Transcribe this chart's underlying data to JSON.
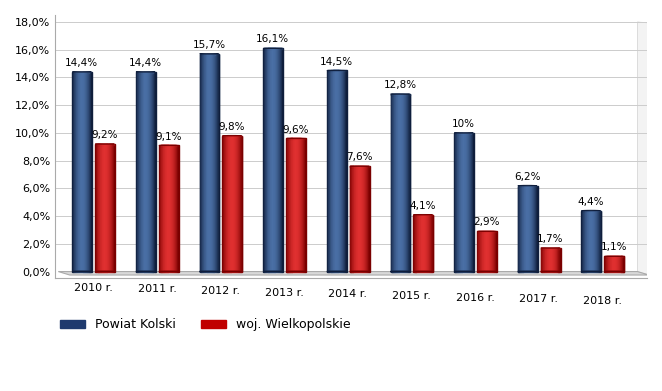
{
  "years": [
    "2010 r.",
    "2011 r.",
    "2012 r.",
    "2013 r.",
    "2014 r.",
    "2015 r.",
    "2016 r.",
    "2017 r.",
    "2018 r."
  ],
  "powiat_kolski": [
    14.4,
    14.4,
    15.7,
    16.1,
    14.5,
    12.8,
    10.0,
    6.2,
    4.4
  ],
  "woj_wielkopolskie": [
    9.2,
    9.1,
    9.8,
    9.6,
    7.6,
    4.1,
    2.9,
    1.7,
    1.1
  ],
  "powiat_labels": [
    "14,4%",
    "14,4%",
    "15,7%",
    "16,1%",
    "14,5%",
    "12,8%",
    "10%",
    "6,2%",
    "4,4%"
  ],
  "woj_labels": [
    "9,2%",
    "9,1%",
    "9,8%",
    "9,6%",
    "7,6%",
    "4,1%",
    "2,9%",
    "1,7%",
    "1,1%"
  ],
  "bar_color_powiat": "#1F3A6E",
  "bar_color_powiat_light": "#4A6FA5",
  "bar_color_powiat_dark": "#0F1E3C",
  "bar_color_woj": "#C00000",
  "bar_color_woj_light": "#E03030",
  "bar_color_woj_dark": "#7A0000",
  "ylim": [
    0,
    18
  ],
  "yticks": [
    0,
    2,
    4,
    6,
    8,
    10,
    12,
    14,
    16,
    18
  ],
  "ytick_labels": [
    "0,0%",
    "2,0%",
    "4,0%",
    "6,0%",
    "8,0%",
    "10,0%",
    "12,0%",
    "14,0%",
    "16,0%",
    "18,0%"
  ],
  "legend_powiat": "Powiat Kolski",
  "legend_woj": "woj. Wielkopolskie",
  "background_color": "#FFFFFF",
  "plot_bg_color": "#FFFFFF",
  "bar_width": 0.3,
  "label_fontsize": 7.5,
  "tick_fontsize": 8,
  "legend_fontsize": 9,
  "floor_color": "#D8D8D8",
  "floor_edge_color": "#AAAAAA"
}
